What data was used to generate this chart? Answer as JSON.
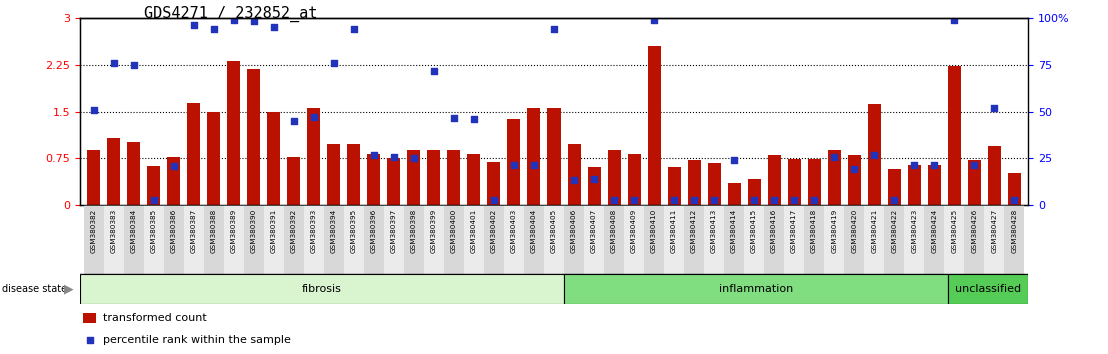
{
  "title": "GDS4271 / 232852_at",
  "samples": [
    "GSM380382",
    "GSM380383",
    "GSM380384",
    "GSM380385",
    "GSM380386",
    "GSM380387",
    "GSM380388",
    "GSM380389",
    "GSM380390",
    "GSM380391",
    "GSM380392",
    "GSM380393",
    "GSM380394",
    "GSM380395",
    "GSM380396",
    "GSM380397",
    "GSM380398",
    "GSM380399",
    "GSM380400",
    "GSM380401",
    "GSM380402",
    "GSM380403",
    "GSM380404",
    "GSM380405",
    "GSM380406",
    "GSM380407",
    "GSM380408",
    "GSM380409",
    "GSM380410",
    "GSM380411",
    "GSM380412",
    "GSM380413",
    "GSM380414",
    "GSM380415",
    "GSM380416",
    "GSM380417",
    "GSM380418",
    "GSM380419",
    "GSM380420",
    "GSM380421",
    "GSM380422",
    "GSM380423",
    "GSM380424",
    "GSM380425",
    "GSM380426",
    "GSM380427",
    "GSM380428"
  ],
  "bar_values": [
    0.88,
    1.08,
    1.02,
    0.63,
    0.78,
    1.63,
    1.5,
    2.3,
    2.18,
    1.5,
    0.78,
    1.55,
    0.98,
    0.98,
    0.82,
    0.75,
    0.88,
    0.88,
    0.88,
    0.82,
    0.7,
    1.38,
    1.55,
    1.55,
    0.98,
    0.62,
    0.88,
    0.82,
    2.55,
    0.62,
    0.72,
    0.68,
    0.35,
    0.42,
    0.8,
    0.74,
    0.74,
    0.88,
    0.8,
    1.62,
    0.58,
    0.65,
    0.65,
    2.22,
    0.72,
    0.95,
    0.52
  ],
  "blue_dot_values": [
    1.52,
    2.27,
    2.25,
    0.08,
    0.63,
    2.88,
    2.82,
    2.97,
    2.95,
    2.85,
    1.35,
    1.42,
    2.27,
    2.82,
    0.8,
    0.77,
    0.75,
    2.15,
    1.4,
    1.38,
    0.08,
    0.65,
    0.65,
    2.82,
    0.4,
    0.42,
    0.08,
    0.08,
    2.97,
    0.08,
    0.08,
    0.08,
    0.72,
    0.08,
    0.08,
    0.08,
    0.08,
    0.77,
    0.58,
    0.8,
    0.08,
    0.65,
    0.65,
    2.97,
    0.65,
    1.55,
    0.08
  ],
  "groups": [
    {
      "label": "fibrosis",
      "start": 0,
      "end": 24,
      "color": "#d8f5d0"
    },
    {
      "label": "inflammation",
      "start": 24,
      "end": 43,
      "color": "#80dd80"
    },
    {
      "label": "unclassified",
      "start": 43,
      "end": 47,
      "color": "#55cc55"
    }
  ],
  "bar_color": "#bb1100",
  "dot_color": "#2233bb",
  "ylim_left": [
    0,
    3.0
  ],
  "ylim_right": [
    0,
    100
  ],
  "yticks_left": [
    0,
    0.75,
    1.5,
    2.25,
    3.0
  ],
  "yticks_right": [
    0,
    25,
    50,
    75,
    100
  ],
  "hlines": [
    0.75,
    1.5,
    2.25
  ],
  "title_fontsize": 11,
  "background_color": "#ffffff"
}
